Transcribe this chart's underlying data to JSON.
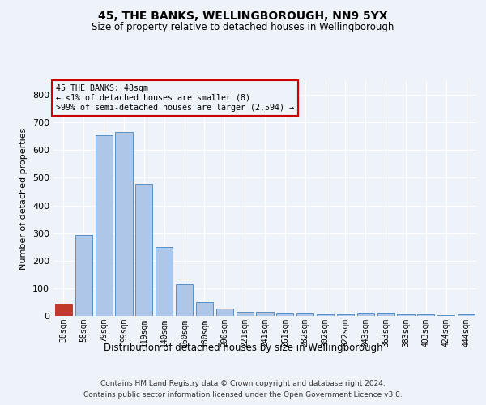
{
  "title": "45, THE BANKS, WELLINGBOROUGH, NN9 5YX",
  "subtitle": "Size of property relative to detached houses in Wellingborough",
  "xlabel": "Distribution of detached houses by size in Wellingborough",
  "ylabel": "Number of detached properties",
  "categories": [
    "38sqm",
    "58sqm",
    "79sqm",
    "99sqm",
    "119sqm",
    "140sqm",
    "160sqm",
    "180sqm",
    "200sqm",
    "221sqm",
    "241sqm",
    "261sqm",
    "282sqm",
    "302sqm",
    "322sqm",
    "343sqm",
    "363sqm",
    "383sqm",
    "403sqm",
    "424sqm",
    "444sqm"
  ],
  "values": [
    45,
    293,
    653,
    665,
    478,
    248,
    113,
    50,
    27,
    15,
    14,
    8,
    8,
    7,
    7,
    10,
    8,
    5,
    5,
    3,
    5
  ],
  "bar_color": "#aec6e8",
  "bar_edge_color": "#5a8fc2",
  "highlight_bar_index": 0,
  "highlight_bar_color": "#c0392b",
  "highlight_bar_edge_color": "#c0392b",
  "annotation_text": "45 THE BANKS: 48sqm\n← <1% of detached houses are smaller (8)\n>99% of semi-detached houses are larger (2,594) →",
  "annotation_box_edgecolor": "#cc0000",
  "background_color": "#eef2f9",
  "grid_color": "#ffffff",
  "ylim": [
    0,
    850
  ],
  "yticks": [
    0,
    100,
    200,
    300,
    400,
    500,
    600,
    700,
    800
  ],
  "footer_line1": "Contains HM Land Registry data © Crown copyright and database right 2024.",
  "footer_line2": "Contains public sector information licensed under the Open Government Licence v3.0."
}
